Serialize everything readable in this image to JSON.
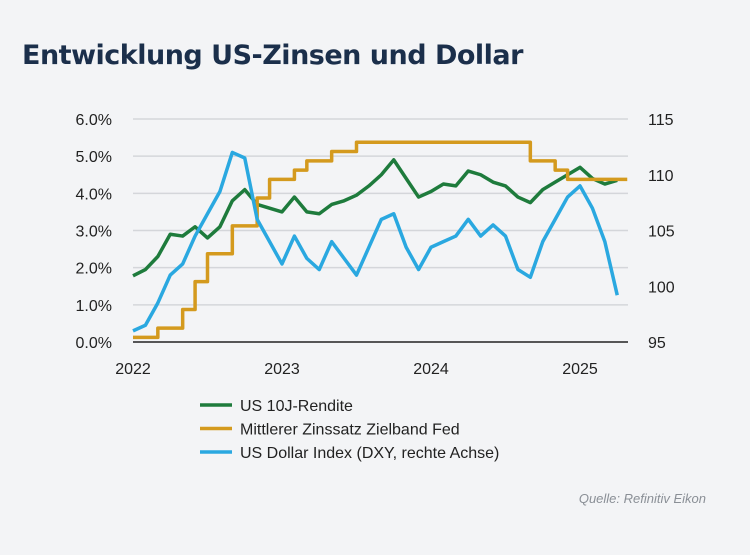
{
  "title": "Entwicklung US-Zinsen und Dollar",
  "source": "Quelle: Refinitiv Eikon",
  "chart_data": {
    "type": "line",
    "title": "Entwicklung US-Zinsen und Dollar",
    "x": [
      "2022-01",
      "2022-02",
      "2022-03",
      "2022-04",
      "2022-05",
      "2022-06",
      "2022-07",
      "2022-08",
      "2022-09",
      "2022-10",
      "2022-11",
      "2022-12",
      "2023-01",
      "2023-02",
      "2023-03",
      "2023-04",
      "2023-05",
      "2023-06",
      "2023-07",
      "2023-08",
      "2023-09",
      "2023-10",
      "2023-11",
      "2023-12",
      "2024-01",
      "2024-02",
      "2024-03",
      "2024-04",
      "2024-05",
      "2024-06",
      "2024-07",
      "2024-08",
      "2024-09",
      "2024-10",
      "2024-11",
      "2024-12",
      "2025-01",
      "2025-02",
      "2025-03",
      "2025-04"
    ],
    "x_ticks": [
      "2022",
      "2023",
      "2024",
      "2025"
    ],
    "y_left": {
      "ticks": [
        "0.0%",
        "1.0%",
        "2.0%",
        "3.0%",
        "4.0%",
        "5.0%",
        "6.0%"
      ],
      "range": [
        0,
        6
      ]
    },
    "y_right": {
      "ticks": [
        "95",
        "100",
        "105",
        "110",
        "115"
      ],
      "range": [
        95,
        115
      ]
    },
    "grid": true,
    "legend_position": "bottom",
    "series": [
      {
        "name": "US 10J-Rendite",
        "axis": "left",
        "color": "#1e7b3c",
        "values": [
          1.78,
          1.95,
          2.3,
          2.9,
          2.85,
          3.1,
          2.8,
          3.1,
          3.8,
          4.1,
          3.7,
          3.6,
          3.5,
          3.9,
          3.5,
          3.45,
          3.7,
          3.8,
          3.95,
          4.2,
          4.5,
          4.9,
          4.4,
          3.9,
          4.05,
          4.25,
          4.2,
          4.6,
          4.5,
          4.3,
          4.2,
          3.9,
          3.75,
          4.1,
          4.3,
          4.5,
          4.7,
          4.4,
          4.25,
          4.35
        ]
      },
      {
        "name": "Mittlerer Zinssatz Zielband Fed",
        "axis": "left",
        "color": "#d49a1e",
        "step": true,
        "values": [
          0.125,
          0.125,
          0.375,
          0.375,
          0.875,
          1.625,
          2.375,
          2.375,
          3.125,
          3.125,
          3.875,
          4.375,
          4.375,
          4.625,
          4.875,
          4.875,
          5.125,
          5.125,
          5.375,
          5.375,
          5.375,
          5.375,
          5.375,
          5.375,
          5.375,
          5.375,
          5.375,
          5.375,
          5.375,
          5.375,
          5.375,
          5.375,
          4.875,
          4.875,
          4.625,
          4.375,
          4.375,
          4.375,
          4.375,
          4.375
        ]
      },
      {
        "name": "US Dollar Index (DXY, rechte Achse)",
        "axis": "right",
        "color": "#2aa8e0",
        "values": [
          96,
          96.5,
          98.5,
          101,
          102,
          104.5,
          106.5,
          108.5,
          112,
          111.5,
          106,
          104,
          102,
          104.5,
          102.5,
          101.5,
          104,
          102.5,
          101,
          103.5,
          106,
          106.5,
          103.5,
          101.5,
          103.5,
          104,
          104.5,
          106,
          104.5,
          105.5,
          104.5,
          101.5,
          100.8,
          104,
          106,
          108,
          109,
          107,
          104,
          99.2
        ]
      }
    ]
  }
}
